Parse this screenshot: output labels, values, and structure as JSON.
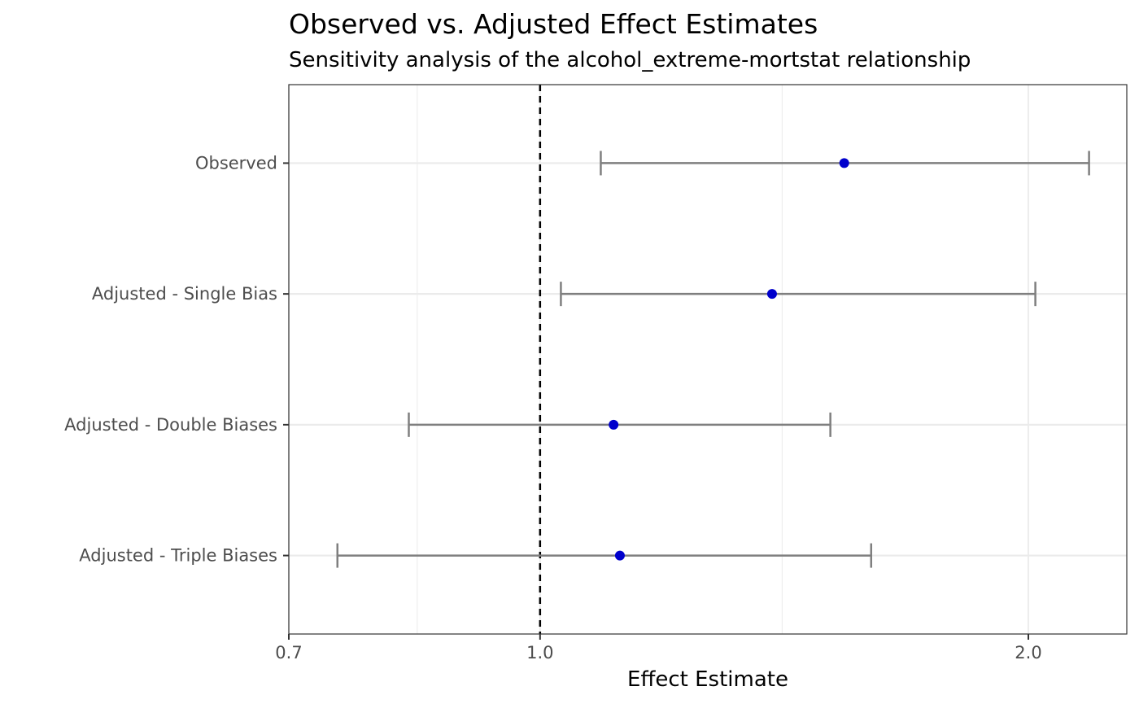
{
  "chart_data": {
    "type": "scatter",
    "title": "Observed vs. Adjusted Effect Estimates",
    "subtitle": "Sensitivity analysis of the alcohol_extreme-mortstat relationship",
    "xlabel": "Effect Estimate",
    "ylabel": "",
    "x_scale": "log",
    "xlim": [
      0.7,
      2.3
    ],
    "x_ticks": [
      {
        "value": 0.7,
        "label": "0.7"
      },
      {
        "value": 1.0,
        "label": "1.0"
      },
      {
        "value": 2.0,
        "label": "2.0"
      }
    ],
    "x_minor_grid": [
      0.84,
      1.41
    ],
    "reference_line": {
      "x": 1.0,
      "style": "dashed"
    },
    "categories": [
      "Observed",
      "Adjusted - Single Bias",
      "Adjusted - Double Biases",
      "Adjusted - Triple Biases"
    ],
    "series": [
      {
        "estimate": [
          1.54,
          1.39,
          1.11,
          1.12
        ],
        "lower": [
          1.09,
          1.03,
          0.83,
          0.75
        ],
        "upper": [
          2.18,
          2.02,
          1.51,
          1.6
        ]
      }
    ],
    "grid": true,
    "colors": {
      "point": "#0000cc",
      "errorbar": "#7f7f7f",
      "reference": "#000000",
      "grid": "#ebebeb",
      "panel_border": "#333333"
    }
  }
}
